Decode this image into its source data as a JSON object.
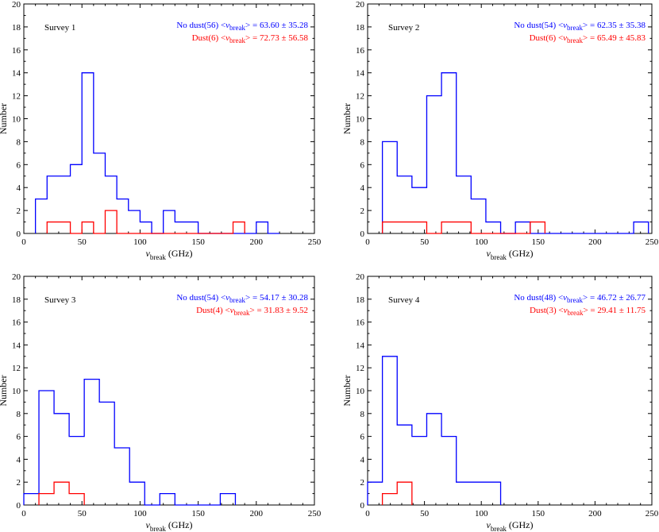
{
  "colors": {
    "nodust": "#0000ff",
    "dust": "#ff0000",
    "axis": "#000000"
  },
  "chart_data": [
    {
      "type": "histogram",
      "title": "Survey 1",
      "xlabel_symbol": "ν",
      "xlabel_sub": "break",
      "xlabel_unit": "(GHz)",
      "ylabel": "Number",
      "xlim": [
        0,
        250
      ],
      "ylim": [
        0,
        20
      ],
      "xticks": [
        0,
        50,
        100,
        150,
        200,
        250
      ],
      "xtick_labels": [
        "0",
        "50",
        "100",
        "150",
        "200",
        "250"
      ],
      "yticks": [
        0,
        2,
        4,
        6,
        8,
        10,
        12,
        14,
        16,
        18,
        20
      ],
      "ytick_labels": [
        "0",
        "2",
        "4",
        "6",
        "8",
        "10",
        "12",
        "14",
        "16",
        "18",
        "20"
      ],
      "legend": [
        {
          "name": "nodust",
          "pre": "No dust(56) <",
          "sym": "ν",
          "sub": "break",
          "post": "> = 63.60 ± 35.28"
        },
        {
          "name": "dust",
          "pre": "Dust(6) <",
          "sym": "ν",
          "sub": "break",
          "post": "> = 72.73 ± 56.58"
        }
      ],
      "series": [
        {
          "name": "No dust",
          "color_key": "nodust",
          "edges": [
            10,
            20,
            30,
            40,
            50,
            60,
            70,
            80,
            90,
            100,
            110,
            120,
            130,
            140,
            150,
            160,
            170,
            180,
            190,
            200,
            210,
            220
          ],
          "counts": [
            3,
            5,
            5,
            6,
            14,
            7,
            5,
            3,
            2,
            1,
            0,
            2,
            1,
            1,
            0,
            0,
            0,
            0,
            0,
            1,
            0
          ]
        },
        {
          "name": "Dust",
          "color_key": "dust",
          "edges": [
            20,
            30,
            40,
            50,
            60,
            70,
            80,
            90,
            100,
            110,
            120,
            130,
            140,
            150,
            160,
            170,
            180,
            190
          ],
          "counts": [
            1,
            1,
            0,
            1,
            0,
            2,
            0,
            0,
            0,
            0,
            0,
            0,
            0,
            0,
            0,
            0,
            1
          ]
        }
      ]
    },
    {
      "type": "histogram",
      "title": "Survey 2",
      "xlabel_symbol": "ν",
      "xlabel_sub": "break",
      "xlabel_unit": "(GHz)",
      "ylabel": "Number",
      "xlim": [
        0,
        250
      ],
      "ylim": [
        0,
        20
      ],
      "xticks": [
        0,
        50,
        100,
        150,
        200,
        250
      ],
      "xtick_labels": [
        "0",
        "50",
        "100",
        "150",
        "200",
        "250"
      ],
      "yticks": [
        0,
        2,
        4,
        6,
        8,
        10,
        12,
        14,
        16,
        18,
        20
      ],
      "ytick_labels": [
        "0",
        "2",
        "4",
        "6",
        "8",
        "10",
        "12",
        "14",
        "16",
        "18",
        "20"
      ],
      "legend": [
        {
          "name": "nodust",
          "pre": "No dust(54) <",
          "sym": "ν",
          "sub": "break",
          "post": "> = 62.35 ± 35.38"
        },
        {
          "name": "dust",
          "pre": "Dust(6) <",
          "sym": "ν",
          "sub": "break",
          "post": "> = 65.49 ± 45.83"
        }
      ],
      "series": [
        {
          "name": "No dust",
          "color_key": "nodust",
          "edges": [
            13,
            26,
            39,
            52,
            65,
            78,
            91,
            104,
            117,
            130,
            143,
            156,
            169,
            182,
            195,
            208,
            221,
            234,
            247
          ],
          "counts": [
            8,
            5,
            4,
            12,
            14,
            5,
            3,
            1,
            0,
            1,
            0,
            0,
            0,
            0,
            0,
            0,
            0,
            1
          ]
        },
        {
          "name": "Dust",
          "color_key": "dust",
          "edges": [
            13,
            26,
            39,
            52,
            65,
            78,
            91,
            104,
            117,
            130,
            143,
            156
          ],
          "counts": [
            1,
            1,
            1,
            0,
            1,
            1,
            0,
            0,
            0,
            0,
            1
          ]
        }
      ]
    },
    {
      "type": "histogram",
      "title": "Survey 3",
      "xlabel_symbol": "ν",
      "xlabel_sub": "break",
      "xlabel_unit": "(GHz)",
      "ylabel": "Number",
      "xlim": [
        0,
        250
      ],
      "ylim": [
        0,
        20
      ],
      "xticks": [
        0,
        50,
        100,
        150,
        200,
        250
      ],
      "xtick_labels": [
        "0",
        "50",
        "100",
        "150",
        "200",
        "250"
      ],
      "yticks": [
        0,
        2,
        4,
        6,
        8,
        10,
        12,
        14,
        16,
        18,
        20
      ],
      "ytick_labels": [
        "0",
        "2",
        "4",
        "6",
        "8",
        "10",
        "12",
        "14",
        "16",
        "18",
        "20"
      ],
      "legend": [
        {
          "name": "nodust",
          "pre": "No dust(54) <",
          "sym": "ν",
          "sub": "break",
          "post": "> = 54.17 ± 30.28"
        },
        {
          "name": "dust",
          "pre": "Dust(4) <",
          "sym": "ν",
          "sub": "break",
          "post": "> = 31.83 ± 9.52"
        }
      ],
      "series": [
        {
          "name": "No dust",
          "color_key": "nodust",
          "edges": [
            0,
            13,
            26,
            39,
            52,
            65,
            78,
            91,
            104,
            117,
            130,
            143,
            156,
            169,
            182
          ],
          "counts": [
            1,
            10,
            8,
            6,
            11,
            9,
            5,
            2,
            0,
            1,
            0,
            0,
            0,
            1
          ]
        },
        {
          "name": "Dust",
          "color_key": "dust",
          "edges": [
            13,
            26,
            39,
            52
          ],
          "counts": [
            1,
            2,
            1
          ]
        }
      ]
    },
    {
      "type": "histogram",
      "title": "Survey 4",
      "xlabel_symbol": "ν",
      "xlabel_sub": "break",
      "xlabel_unit": "(GHz)",
      "ylabel": "Number",
      "xlim": [
        0,
        250
      ],
      "ylim": [
        0,
        20
      ],
      "xticks": [
        0,
        50,
        100,
        150,
        200,
        250
      ],
      "xtick_labels": [
        "0",
        "50",
        "100",
        "150",
        "200",
        "250"
      ],
      "yticks": [
        0,
        2,
        4,
        6,
        8,
        10,
        12,
        14,
        16,
        18,
        20
      ],
      "ytick_labels": [
        "0",
        "2",
        "4",
        "6",
        "8",
        "10",
        "12",
        "14",
        "16",
        "18",
        "20"
      ],
      "legend": [
        {
          "name": "nodust",
          "pre": "No dust(48) <",
          "sym": "ν",
          "sub": "break",
          "post": "> = 46.72 ± 26.77"
        },
        {
          "name": "dust",
          "pre": "Dust(3) <",
          "sym": "ν",
          "sub": "break",
          "post": "> = 29.41 ± 11.75"
        }
      ],
      "series": [
        {
          "name": "No dust",
          "color_key": "nodust",
          "edges": [
            0,
            13,
            26,
            39,
            52,
            65,
            78,
            91,
            104,
            117
          ],
          "counts": [
            2,
            13,
            7,
            6,
            8,
            6,
            2,
            2,
            2
          ]
        },
        {
          "name": "Dust",
          "color_key": "dust",
          "edges": [
            13,
            26,
            39
          ],
          "counts": [
            1,
            2
          ]
        }
      ]
    }
  ]
}
